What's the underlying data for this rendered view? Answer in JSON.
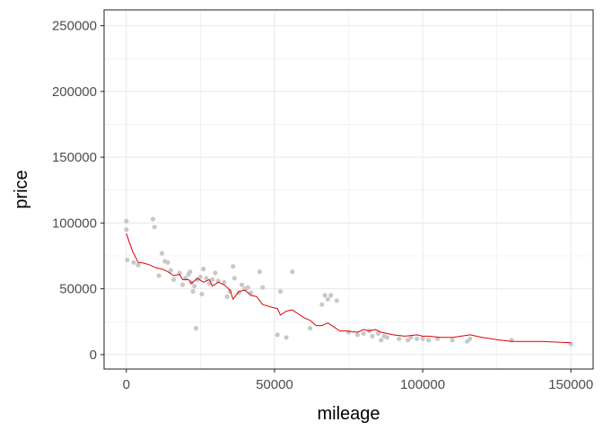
{
  "chart_data": {
    "type": "scatter",
    "xlabel": "mileage",
    "ylabel": "price",
    "xlim": [
      -7500,
      157500
    ],
    "ylim": [
      -11000,
      262000
    ],
    "x_ticks": [
      0,
      50000,
      100000,
      150000
    ],
    "x_tick_labels": [
      "0",
      "50000",
      "100000",
      "150000"
    ],
    "y_ticks": [
      0,
      50000,
      100000,
      150000,
      200000,
      250000
    ],
    "y_tick_labels": [
      "0",
      "50000",
      "100000",
      "150000",
      "200000",
      "250000"
    ],
    "grid": true,
    "theme": "bw",
    "colors": {
      "points": "#c8c8c8",
      "line": "#e00000",
      "grid": "#ebebeb",
      "border": "#333333"
    },
    "series": [
      {
        "type": "scatter",
        "points": [
          [
            0,
            101500
          ],
          [
            0,
            95000
          ],
          [
            300,
            72000
          ],
          [
            2500,
            70000
          ],
          [
            4000,
            68000
          ],
          [
            9000,
            103000
          ],
          [
            9500,
            97000
          ],
          [
            11000,
            60000
          ],
          [
            12000,
            77000
          ],
          [
            13000,
            71000
          ],
          [
            14000,
            70000
          ],
          [
            15000,
            64000
          ],
          [
            16000,
            57000
          ],
          [
            18000,
            62000
          ],
          [
            19000,
            53000
          ],
          [
            20000,
            58000
          ],
          [
            21000,
            61000
          ],
          [
            21500,
            63000
          ],
          [
            22000,
            55000
          ],
          [
            22500,
            48000
          ],
          [
            23000,
            52000
          ],
          [
            23500,
            20000
          ],
          [
            24000,
            57000
          ],
          [
            25000,
            59000
          ],
          [
            25500,
            46000
          ],
          [
            26000,
            65000
          ],
          [
            27000,
            58000
          ],
          [
            28000,
            54000
          ],
          [
            29000,
            57000
          ],
          [
            30000,
            62000
          ],
          [
            31000,
            56000
          ],
          [
            33000,
            55000
          ],
          [
            34000,
            44000
          ],
          [
            35000,
            48000
          ],
          [
            36000,
            67000
          ],
          [
            36500,
            58000
          ],
          [
            38000,
            47000
          ],
          [
            39000,
            53000
          ],
          [
            40000,
            50000
          ],
          [
            41000,
            51000
          ],
          [
            42000,
            47000
          ],
          [
            45000,
            63000
          ],
          [
            46000,
            51000
          ],
          [
            51000,
            15000
          ],
          [
            52000,
            48000
          ],
          [
            54000,
            13000
          ],
          [
            56000,
            63000
          ],
          [
            62000,
            20000
          ],
          [
            66000,
            38000
          ],
          [
            67000,
            45000
          ],
          [
            68000,
            42000
          ],
          [
            69000,
            45000
          ],
          [
            71000,
            41000
          ],
          [
            75000,
            17000
          ],
          [
            78000,
            15000
          ],
          [
            80000,
            16000
          ],
          [
            82000,
            18000
          ],
          [
            83000,
            14000
          ],
          [
            85000,
            16000
          ],
          [
            86000,
            11000
          ],
          [
            87000,
            14000
          ],
          [
            88000,
            13000
          ],
          [
            92000,
            12000
          ],
          [
            95000,
            11000
          ],
          [
            96000,
            13000
          ],
          [
            98000,
            12000
          ],
          [
            100000,
            12000
          ],
          [
            102000,
            11000
          ],
          [
            105000,
            12000
          ],
          [
            110000,
            11000
          ],
          [
            115000,
            10000
          ],
          [
            116000,
            12000
          ],
          [
            130000,
            11000
          ],
          [
            150000,
            8000
          ]
        ]
      },
      {
        "type": "line",
        "points": [
          [
            0,
            92000
          ],
          [
            2000,
            79000
          ],
          [
            4000,
            70000
          ],
          [
            6000,
            69500
          ],
          [
            8000,
            68000
          ],
          [
            10000,
            66000
          ],
          [
            12000,
            65000
          ],
          [
            14000,
            63000
          ],
          [
            16000,
            60000
          ],
          [
            18000,
            61000
          ],
          [
            19000,
            57000
          ],
          [
            21000,
            57000
          ],
          [
            22000,
            54000
          ],
          [
            24000,
            58000
          ],
          [
            26000,
            55000
          ],
          [
            28000,
            57000
          ],
          [
            29000,
            52000
          ],
          [
            31000,
            55000
          ],
          [
            33000,
            53000
          ],
          [
            35000,
            49000
          ],
          [
            36000,
            42000
          ],
          [
            38000,
            48000
          ],
          [
            40000,
            49000
          ],
          [
            42000,
            45000
          ],
          [
            44000,
            44000
          ],
          [
            46000,
            38000
          ],
          [
            49000,
            36000
          ],
          [
            51000,
            35000
          ],
          [
            52000,
            30000
          ],
          [
            54000,
            33000
          ],
          [
            56000,
            34000
          ],
          [
            58000,
            31000
          ],
          [
            60000,
            28000
          ],
          [
            62000,
            26000
          ],
          [
            64000,
            22000
          ],
          [
            66000,
            22000
          ],
          [
            68000,
            24000
          ],
          [
            70000,
            21000
          ],
          [
            72000,
            18000
          ],
          [
            74000,
            18000
          ],
          [
            78000,
            17000
          ],
          [
            80000,
            19000
          ],
          [
            82000,
            18000
          ],
          [
            84000,
            19000
          ],
          [
            86000,
            17000
          ],
          [
            90000,
            15000
          ],
          [
            94000,
            14000
          ],
          [
            98000,
            15000
          ],
          [
            100000,
            14000
          ],
          [
            102000,
            14000
          ],
          [
            106000,
            13000
          ],
          [
            110000,
            13000
          ],
          [
            116000,
            15000
          ],
          [
            120000,
            13000
          ],
          [
            126000,
            11000
          ],
          [
            130000,
            10000
          ],
          [
            140000,
            10000
          ],
          [
            150000,
            9000
          ]
        ]
      }
    ]
  }
}
